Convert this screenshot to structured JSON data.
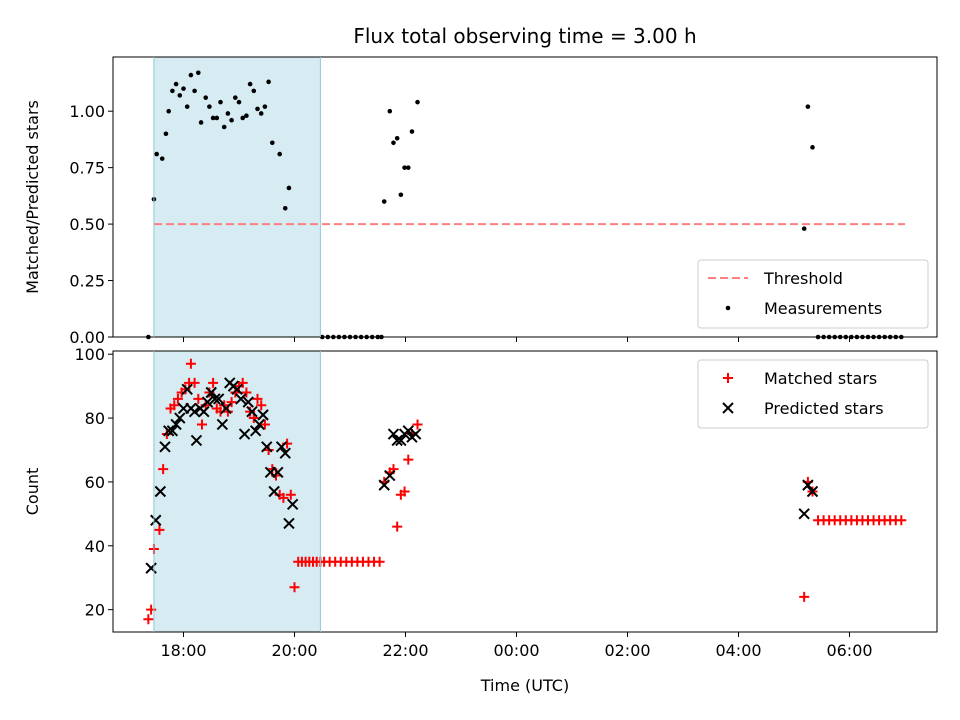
{
  "chart_data": {
    "title": "Flux total observing time = 3.00 h",
    "xlabel": "Time (UTC)",
    "x_ticks": [
      "18:00",
      "20:00",
      "22:00",
      "00:00",
      "02:00",
      "04:00",
      "06:00"
    ],
    "observing_window": {
      "start": "17:28",
      "end": "20:28",
      "color": "#add8e6"
    },
    "panels": [
      {
        "type": "scatter",
        "ylabel": "Matched/Predicted stars",
        "ylim": [
          0,
          1.24
        ],
        "y_ticks": [
          "0.00",
          "0.25",
          "0.50",
          "0.75",
          "1.00"
        ],
        "legend_position": "lower-right",
        "series": [
          {
            "name": "Threshold",
            "style": "dashed-line",
            "color": "#ff7f7f",
            "points": [
              [
                "17:28",
                0.5
              ],
              [
                "07:00",
                0.5
              ]
            ]
          },
          {
            "name": "Measurements",
            "style": "dot",
            "color": "#000000",
            "points": [
              [
                "17:22",
                0.0
              ],
              [
                "17:28",
                0.61
              ],
              [
                "17:31",
                0.81
              ],
              [
                "17:37",
                0.79
              ],
              [
                "17:41",
                0.9
              ],
              [
                "17:44",
                1.0
              ],
              [
                "17:48",
                1.09
              ],
              [
                "17:52",
                1.12
              ],
              [
                "17:56",
                1.07
              ],
              [
                "18:00",
                1.1
              ],
              [
                "18:04",
                1.02
              ],
              [
                "18:08",
                1.16
              ],
              [
                "18:12",
                1.09
              ],
              [
                "18:16",
                1.17
              ],
              [
                "18:19",
                0.95
              ],
              [
                "18:24",
                1.06
              ],
              [
                "18:28",
                1.02
              ],
              [
                "18:32",
                0.97
              ],
              [
                "18:36",
                0.97
              ],
              [
                "18:40",
                1.04
              ],
              [
                "18:44",
                0.93
              ],
              [
                "18:48",
                0.99
              ],
              [
                "18:52",
                0.96
              ],
              [
                "18:56",
                1.06
              ],
              [
                "19:00",
                1.04
              ],
              [
                "19:04",
                0.97
              ],
              [
                "19:08",
                0.98
              ],
              [
                "19:12",
                1.12
              ],
              [
                "19:16",
                1.09
              ],
              [
                "19:20",
                1.01
              ],
              [
                "19:24",
                0.99
              ],
              [
                "19:28",
                1.02
              ],
              [
                "19:32",
                1.13
              ],
              [
                "19:36",
                0.86
              ],
              [
                "19:44",
                0.81
              ],
              [
                "19:50",
                0.57
              ],
              [
                "19:54",
                0.66
              ],
              [
                "20:30",
                0.0
              ],
              [
                "20:36",
                0.0
              ],
              [
                "20:42",
                0.0
              ],
              [
                "20:48",
                0.0
              ],
              [
                "20:54",
                0.0
              ],
              [
                "21:00",
                0.0
              ],
              [
                "21:06",
                0.0
              ],
              [
                "21:12",
                0.0
              ],
              [
                "21:18",
                0.0
              ],
              [
                "21:24",
                0.0
              ],
              [
                "21:30",
                0.0
              ],
              [
                "21:34",
                0.0
              ],
              [
                "21:37",
                0.6
              ],
              [
                "21:43",
                1.0
              ],
              [
                "21:47",
                0.86
              ],
              [
                "21:51",
                0.88
              ],
              [
                "21:55",
                0.63
              ],
              [
                "21:59",
                0.75
              ],
              [
                "22:03",
                0.75
              ],
              [
                "22:07",
                0.91
              ],
              [
                "22:13",
                1.04
              ],
              [
                "05:11",
                0.48
              ],
              [
                "05:15",
                1.02
              ],
              [
                "05:20",
                0.84
              ],
              [
                "05:26",
                0.0
              ],
              [
                "05:32",
                0.0
              ],
              [
                "05:38",
                0.0
              ],
              [
                "05:44",
                0.0
              ],
              [
                "05:50",
                0.0
              ],
              [
                "05:56",
                0.0
              ],
              [
                "06:02",
                0.0
              ],
              [
                "06:08",
                0.0
              ],
              [
                "06:14",
                0.0
              ],
              [
                "06:20",
                0.0
              ],
              [
                "06:26",
                0.0
              ],
              [
                "06:32",
                0.0
              ],
              [
                "06:38",
                0.0
              ],
              [
                "06:44",
                0.0
              ],
              [
                "06:50",
                0.0
              ],
              [
                "06:56",
                0.0
              ]
            ]
          }
        ]
      },
      {
        "type": "scatter",
        "ylabel": "Count",
        "ylim": [
          13,
          101
        ],
        "y_ticks": [
          "20",
          "40",
          "60",
          "80",
          "100"
        ],
        "legend_position": "upper-right",
        "series": [
          {
            "name": "Matched stars",
            "marker": "plus",
            "color": "#ff0000",
            "points": [
              [
                "17:22",
                17
              ],
              [
                "17:25",
                20
              ],
              [
                "17:28",
                39
              ],
              [
                "17:34",
                45
              ],
              [
                "17:38",
                64
              ],
              [
                "17:42",
                75
              ],
              [
                "17:46",
                83
              ],
              [
                "17:50",
                84
              ],
              [
                "17:54",
                86
              ],
              [
                "17:58",
                88
              ],
              [
                "18:02",
                89
              ],
              [
                "18:06",
                91
              ],
              [
                "18:08",
                97
              ],
              [
                "18:12",
                91
              ],
              [
                "18:16",
                86
              ],
              [
                "18:20",
                78
              ],
              [
                "18:24",
                84
              ],
              [
                "18:28",
                88
              ],
              [
                "18:32",
                91
              ],
              [
                "18:36",
                83
              ],
              [
                "18:40",
                82
              ],
              [
                "18:44",
                84
              ],
              [
                "18:48",
                82
              ],
              [
                "18:52",
                85
              ],
              [
                "18:56",
                88
              ],
              [
                "19:00",
                90
              ],
              [
                "19:04",
                91
              ],
              [
                "19:08",
                88
              ],
              [
                "19:12",
                82
              ],
              [
                "19:16",
                80
              ],
              [
                "19:20",
                86
              ],
              [
                "19:24",
                84
              ],
              [
                "19:28",
                78
              ],
              [
                "19:32",
                70
              ],
              [
                "19:36",
                64
              ],
              [
                "19:40",
                62
              ],
              [
                "19:44",
                56
              ],
              [
                "19:48",
                55
              ],
              [
                "19:52",
                72
              ],
              [
                "19:56",
                56
              ],
              [
                "20:00",
                27
              ],
              [
                "20:04",
                35
              ],
              [
                "20:08",
                35
              ],
              [
                "20:12",
                35
              ],
              [
                "20:16",
                35
              ],
              [
                "20:20",
                35
              ],
              [
                "20:24",
                35
              ],
              [
                "20:28",
                35
              ],
              [
                "20:32",
                35
              ],
              [
                "20:38",
                35
              ],
              [
                "20:44",
                35
              ],
              [
                "20:50",
                35
              ],
              [
                "20:56",
                35
              ],
              [
                "21:02",
                35
              ],
              [
                "21:08",
                35
              ],
              [
                "21:14",
                35
              ],
              [
                "21:20",
                35
              ],
              [
                "21:26",
                35
              ],
              [
                "21:32",
                35
              ],
              [
                "21:37",
                60
              ],
              [
                "21:43",
                63
              ],
              [
                "21:47",
                64
              ],
              [
                "21:51",
                46
              ],
              [
                "21:55",
                56
              ],
              [
                "21:59",
                57
              ],
              [
                "22:03",
                67
              ],
              [
                "22:07",
                75
              ],
              [
                "22:13",
                78
              ],
              [
                "05:11",
                24
              ],
              [
                "05:15",
                60
              ],
              [
                "05:20",
                57
              ],
              [
                "05:26",
                48
              ],
              [
                "05:32",
                48
              ],
              [
                "05:38",
                48
              ],
              [
                "05:44",
                48
              ],
              [
                "05:50",
                48
              ],
              [
                "05:56",
                48
              ],
              [
                "06:02",
                48
              ],
              [
                "06:08",
                48
              ],
              [
                "06:14",
                48
              ],
              [
                "06:20",
                48
              ],
              [
                "06:26",
                48
              ],
              [
                "06:32",
                48
              ],
              [
                "06:38",
                48
              ],
              [
                "06:44",
                48
              ],
              [
                "06:50",
                48
              ],
              [
                "06:56",
                48
              ]
            ]
          },
          {
            "name": "Predicted stars",
            "marker": "x",
            "color": "#000000",
            "points": [
              [
                "17:25",
                33
              ],
              [
                "17:30",
                48
              ],
              [
                "17:35",
                57
              ],
              [
                "17:40",
                71
              ],
              [
                "17:44",
                76
              ],
              [
                "17:48",
                76
              ],
              [
                "17:52",
                78
              ],
              [
                "17:56",
                80
              ],
              [
                "18:00",
                83
              ],
              [
                "18:04",
                89
              ],
              [
                "18:08",
                83
              ],
              [
                "18:12",
                82
              ],
              [
                "18:14",
                73
              ],
              [
                "18:18",
                83
              ],
              [
                "18:22",
                82
              ],
              [
                "18:26",
                85
              ],
              [
                "18:30",
                88
              ],
              [
                "18:34",
                86
              ],
              [
                "18:38",
                86
              ],
              [
                "18:42",
                78
              ],
              [
                "18:46",
                83
              ],
              [
                "18:50",
                91
              ],
              [
                "18:54",
                90
              ],
              [
                "18:58",
                89
              ],
              [
                "19:02",
                86
              ],
              [
                "19:06",
                75
              ],
              [
                "19:10",
                85
              ],
              [
                "19:14",
                82
              ],
              [
                "19:18",
                76
              ],
              [
                "19:22",
                78
              ],
              [
                "19:26",
                81
              ],
              [
                "19:30",
                71
              ],
              [
                "19:34",
                63
              ],
              [
                "19:38",
                57
              ],
              [
                "19:42",
                63
              ],
              [
                "19:46",
                71
              ],
              [
                "19:50",
                69
              ],
              [
                "19:54",
                47
              ],
              [
                "19:58",
                53
              ],
              [
                "21:37",
                59
              ],
              [
                "21:43",
                62
              ],
              [
                "21:47",
                75
              ],
              [
                "21:51",
                73
              ],
              [
                "21:55",
                73
              ],
              [
                "21:59",
                75
              ],
              [
                "22:03",
                76
              ],
              [
                "22:07",
                74
              ],
              [
                "22:11",
                75
              ],
              [
                "05:11",
                50
              ],
              [
                "05:15",
                59
              ],
              [
                "05:20",
                57
              ]
            ]
          }
        ]
      }
    ]
  }
}
